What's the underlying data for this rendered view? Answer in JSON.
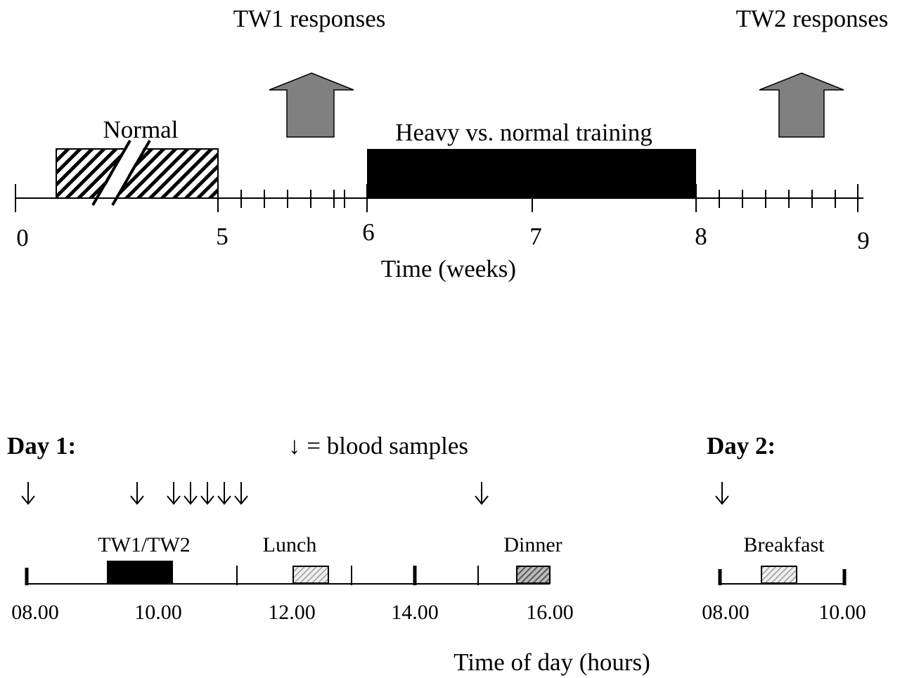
{
  "top": {
    "tw1_label": "TW1 responses",
    "tw2_label": "TW2 responses",
    "normal_label": "Normal",
    "heavy_label": "Heavy vs. normal training",
    "ticks": [
      "0",
      "5",
      "6",
      "7",
      "8",
      "9"
    ],
    "axis_label": "Time (weeks)"
  },
  "bottom": {
    "day1": "Day 1:",
    "legend": "↓ = blood samples",
    "day2": "Day 2:",
    "events": [
      "TW1/TW2",
      "Lunch",
      "Dinner",
      "Breakfast"
    ],
    "ticks": [
      "08.00",
      "10.00",
      "12.00",
      "14.00",
      "16.00",
      "08.00",
      "10.00"
    ],
    "axis_label": "Time of day (hours)"
  }
}
